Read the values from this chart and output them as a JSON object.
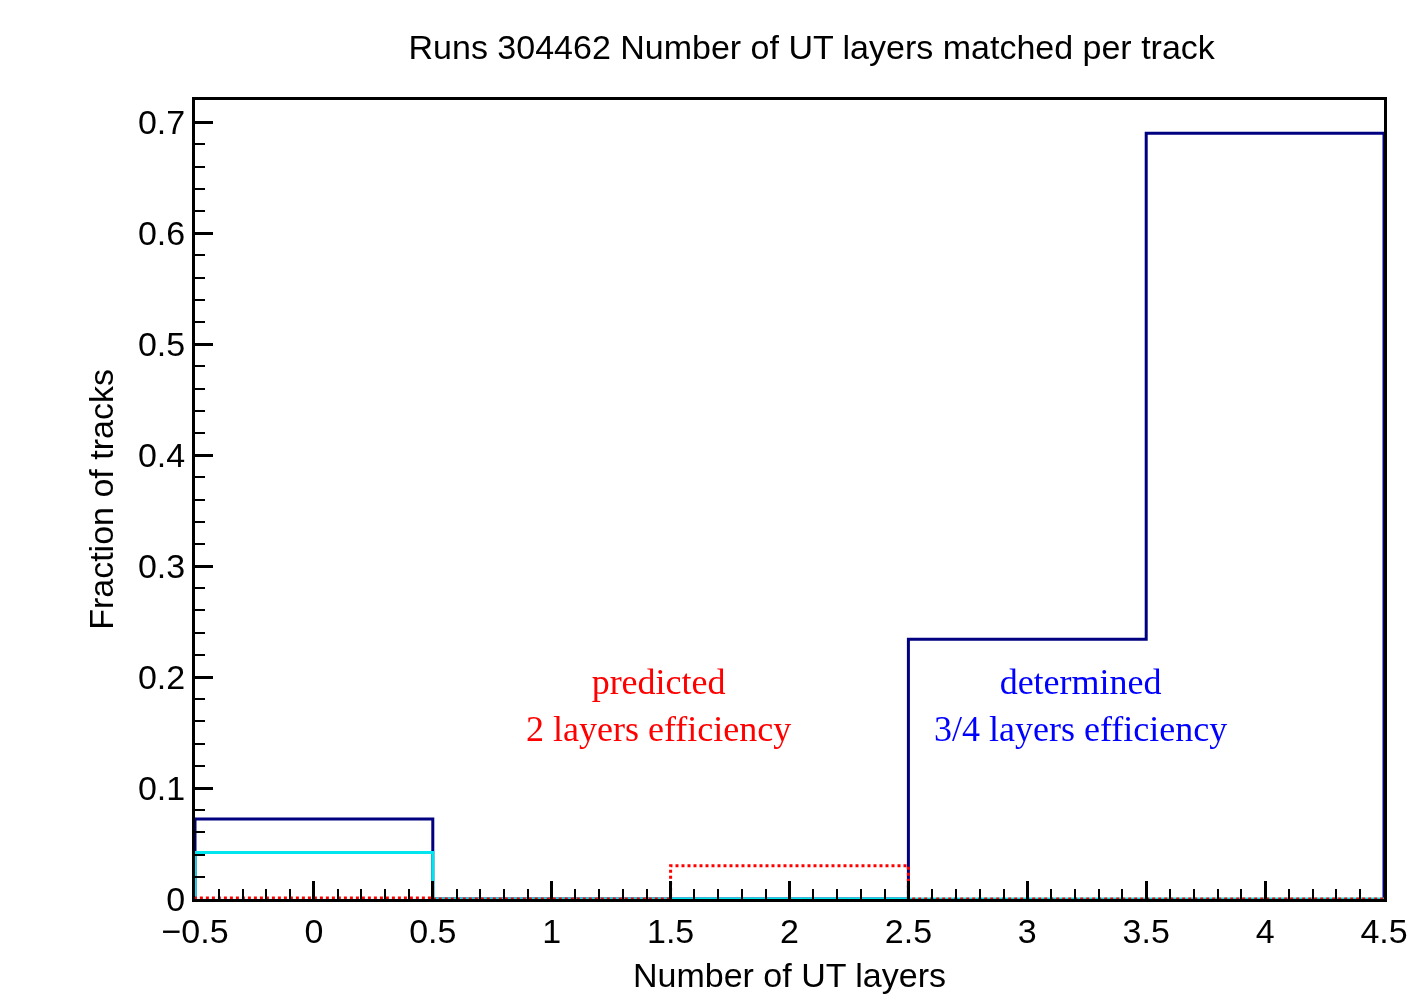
{
  "chart_data": {
    "type": "histogram",
    "title": "Runs 304462 Number of UT layers matched per track",
    "xlabel": "Number of UT layers",
    "ylabel": "Fraction of tracks",
    "bins": [
      -0.5,
      0.5,
      1.5,
      2.5,
      3.5,
      4.5
    ],
    "series": [
      {
        "color": "#000080",
        "values": [
          0.072,
          0,
          0,
          0.234,
          0.69
        ],
        "line_style": "solid"
      },
      {
        "color": "#00e5ee",
        "values": [
          0.042,
          0,
          0,
          0,
          0
        ],
        "line_style": "solid"
      },
      {
        "color": "#ff0000",
        "values": [
          0.001,
          0,
          0.03,
          0,
          0
        ],
        "line_style": "dotted"
      }
    ],
    "xlim": [
      -0.5,
      4.5
    ],
    "xticks": [
      {
        "value": -0.5,
        "label": "−0.5"
      },
      0,
      0.5,
      1,
      1.5,
      2,
      2.5,
      3,
      3.5,
      4,
      4.5
    ],
    "ylim": [
      0,
      0.72
    ],
    "yticks": [
      0,
      0.1,
      0.2,
      0.3,
      0.4,
      0.5,
      0.6,
      0.7
    ],
    "annotations": [
      "predicted\n2 layers efficiency",
      "determined\n3/4 layers efficiency"
    ],
    "tick_labels": "xy"
  }
}
